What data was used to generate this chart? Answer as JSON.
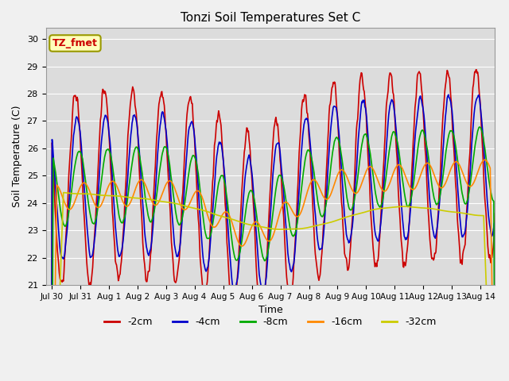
{
  "title": "Tonzi Soil Temperatures Set C",
  "xlabel": "Time",
  "ylabel": "Soil Temperature (C)",
  "annotation": "TZ_fmet",
  "ylim": [
    21.0,
    30.4
  ],
  "yticks": [
    21.0,
    22.0,
    23.0,
    24.0,
    25.0,
    26.0,
    27.0,
    28.0,
    29.0,
    30.0
  ],
  "fig_bg_color": "#f0f0f0",
  "plot_bg_color": "#dcdcdc",
  "series": [
    {
      "label": "-2cm",
      "color": "#cc0000",
      "lw": 1.2
    },
    {
      "label": "-4cm",
      "color": "#0000cc",
      "lw": 1.2
    },
    {
      "label": "-8cm",
      "color": "#00aa00",
      "lw": 1.2
    },
    {
      "label": "-16cm",
      "color": "#ff8800",
      "lw": 1.2
    },
    {
      "label": "-32cm",
      "color": "#cccc00",
      "lw": 1.2
    }
  ],
  "n_days": 15.5,
  "points_per_day": 48,
  "x_tick_labels": [
    "Jul 30",
    "Jul 31",
    "Aug 1",
    "Aug 2",
    "Aug 3",
    "Aug 4",
    "Aug 5",
    "Aug 6",
    "Aug 7",
    "Aug 8",
    "Aug 9",
    "Aug 10",
    "Aug 11",
    "Aug 12",
    "Aug 13",
    "Aug 14"
  ],
  "x_tick_positions": [
    0,
    1,
    2,
    3,
    4,
    5,
    6,
    7,
    8,
    9,
    10,
    11,
    12,
    13,
    14,
    15
  ]
}
